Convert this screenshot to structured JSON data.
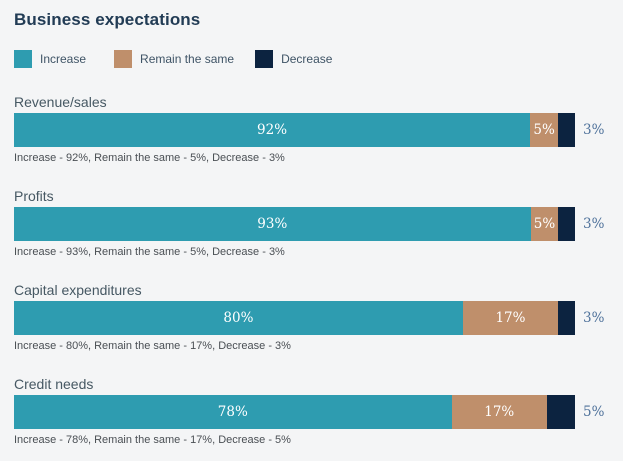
{
  "title": "Business expectations",
  "colors": {
    "increase": "#2e9cb0",
    "remain": "#bf8f6b",
    "decrease": "#0c2340",
    "background": "#f4f5f6",
    "title_text": "#223c55",
    "outside_label_text": "#4f729b"
  },
  "legend": {
    "items": [
      {
        "label": "Increase",
        "key": "increase"
      },
      {
        "label": "Remain the same",
        "key": "remain"
      },
      {
        "label": "Decrease",
        "key": "decrease"
      }
    ]
  },
  "chart_data": {
    "type": "bar",
    "orientation": "horizontal",
    "stacked": true,
    "title": "Business expectations",
    "categories": [
      "Revenue/sales",
      "Profits",
      "Capital expenditures",
      "Credit needs"
    ],
    "series": [
      {
        "name": "Increase",
        "color": "#2e9cb0",
        "values": [
          92,
          93,
          80,
          78
        ]
      },
      {
        "name": "Remain the same",
        "color": "#bf8f6b",
        "values": [
          5,
          5,
          17,
          17
        ]
      },
      {
        "name": "Decrease",
        "color": "#0c2340",
        "values": [
          3,
          3,
          3,
          5
        ]
      }
    ],
    "xlim": [
      0,
      100
    ],
    "value_unit": "%",
    "grid": false,
    "legend_position": "top"
  },
  "groups": [
    {
      "label": "Revenue/sales",
      "increase": 92,
      "remain": 5,
      "decrease": 3,
      "increase_label": "92%",
      "remain_label": "5%",
      "decrease_label": "3%",
      "caption": "Increase - 92%, Remain the same - 5%, Decrease - 3%"
    },
    {
      "label": "Profits",
      "increase": 93,
      "remain": 5,
      "decrease": 3,
      "increase_label": "93%",
      "remain_label": "5%",
      "decrease_label": "3%",
      "caption": "Increase - 93%, Remain the same - 5%, Decrease - 3%"
    },
    {
      "label": "Capital expenditures",
      "increase": 80,
      "remain": 17,
      "decrease": 3,
      "increase_label": "80%",
      "remain_label": "17%",
      "decrease_label": "3%",
      "caption": "Increase - 80%, Remain the same - 17%, Decrease - 3%"
    },
    {
      "label": "Credit needs",
      "increase": 78,
      "remain": 17,
      "decrease": 5,
      "increase_label": "78%",
      "remain_label": "17%",
      "decrease_label": "5%",
      "caption": "Increase - 78%, Remain the same - 17%, Decrease - 5%"
    }
  ]
}
